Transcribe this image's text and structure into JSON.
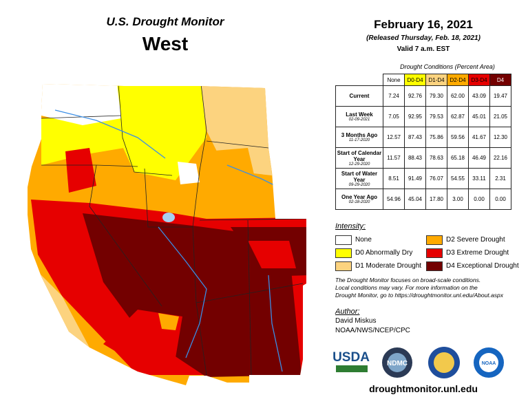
{
  "header": {
    "title": "U.S. Drought Monitor",
    "region": "West"
  },
  "info": {
    "date": "February 16, 2021",
    "released": "(Released Thursday, Feb. 18, 2021)",
    "valid": "Valid 7 a.m. EST"
  },
  "table": {
    "caption": "Drought Conditions (Percent Area)",
    "columns": [
      "None",
      "D0-D4",
      "D1-D4",
      "D2-D4",
      "D3-D4",
      "D4"
    ],
    "column_colors": [
      "#ffffff",
      "#ffff00",
      "#fcd37f",
      "#ffaa00",
      "#e60000",
      "#730000"
    ],
    "rows": [
      {
        "label": "Current",
        "values": [
          "7.24",
          "92.76",
          "79.30",
          "62.00",
          "43.09",
          "19.47"
        ]
      },
      {
        "label": "Last Week",
        "date": "02-09-2021",
        "values": [
          "7.05",
          "92.95",
          "79.53",
          "62.87",
          "45.01",
          "21.05"
        ]
      },
      {
        "label": "3 Months Ago",
        "date": "11-17-2020",
        "values": [
          "12.57",
          "87.43",
          "75.86",
          "59.56",
          "41.67",
          "12.30"
        ]
      },
      {
        "label": "Start of Calendar Year",
        "date": "12-29-2020",
        "values": [
          "11.57",
          "88.43",
          "78.63",
          "65.18",
          "46.49",
          "22.16"
        ]
      },
      {
        "label": "Start of Water Year",
        "date": "09-29-2020",
        "values": [
          "8.51",
          "91.49",
          "76.07",
          "54.55",
          "33.11",
          "2.31"
        ]
      },
      {
        "label": "One Year Ago",
        "date": "02-18-2020",
        "values": [
          "54.96",
          "45.04",
          "17.80",
          "3.00",
          "0.00",
          "0.00"
        ]
      }
    ]
  },
  "legend": {
    "title": "Intensity:",
    "items": [
      {
        "label": "None",
        "color": "#ffffff"
      },
      {
        "label": "D0 Abnormally Dry",
        "color": "#ffff00"
      },
      {
        "label": "D1 Moderate Drought",
        "color": "#fcd37f"
      },
      {
        "label": "D2 Severe Drought",
        "color": "#ffaa00"
      },
      {
        "label": "D3 Extreme Drought",
        "color": "#e60000"
      },
      {
        "label": "D4 Exceptional Drought",
        "color": "#730000"
      }
    ]
  },
  "note": [
    "The Drought Monitor focuses on broad-scale conditions.",
    "Local conditions may vary. For more information on the",
    "Drought Monitor, go to https://droughtmonitor.unl.edu/About.aspx"
  ],
  "author": {
    "heading": "Author:",
    "name": "David Miskus",
    "org": "NOAA/NWS/NCEP/CPC"
  },
  "logos": [
    "USDA",
    "NDMC",
    "NOAA"
  ],
  "url": "droughtmonitor.unl.edu"
}
